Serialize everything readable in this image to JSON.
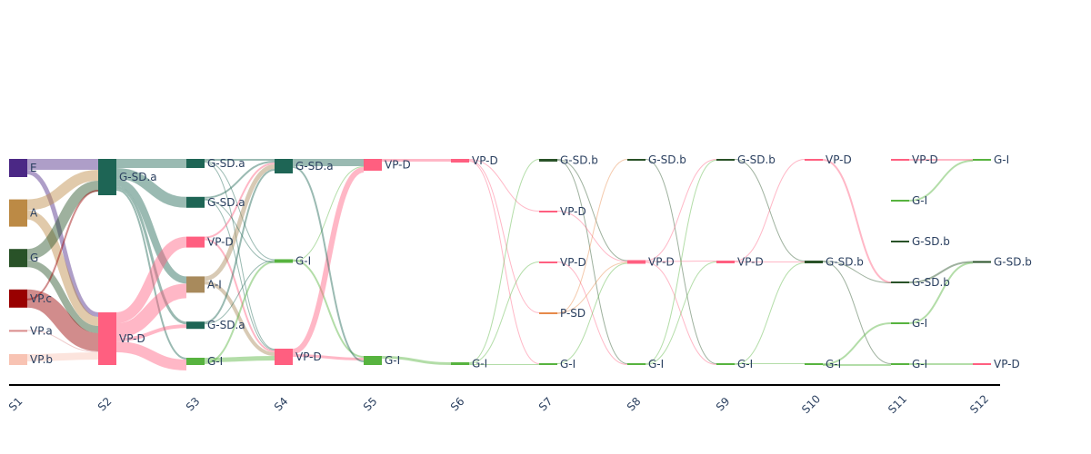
{
  "chart_data": {
    "type": "sankey",
    "title": "",
    "stages": [
      "S1",
      "S2",
      "S3",
      "S4",
      "S5",
      "S6",
      "S7",
      "S8",
      "S9",
      "S10",
      "S11",
      "S12"
    ],
    "colors": {
      "E": "#4b2885",
      "A": "#bc8a45",
      "G": "#295228",
      "VP.c": "#990000",
      "VP.a": "#d98a8a",
      "VP.b": "#f8c3b3",
      "G-SD.a": "#1e6555",
      "VP-D": "#ff5f80",
      "A-I": "#a88a5c",
      "G-I": "#57b33f",
      "G-SD.b": "#295228",
      "P-SD": "#e68a4a"
    },
    "nodes": [
      {
        "id": "s1_E",
        "label": "E",
        "stage": 0,
        "value": 20
      },
      {
        "id": "s1_A",
        "label": "A",
        "stage": 0,
        "value": 30
      },
      {
        "id": "s1_G",
        "label": "G",
        "stage": 0,
        "value": 20
      },
      {
        "id": "s1_VPc",
        "label": "VP.c",
        "stage": 0,
        "value": 20
      },
      {
        "id": "s1_VPa",
        "label": "VP.a",
        "stage": 0,
        "value": 1
      },
      {
        "id": "s1_VPb",
        "label": "VP.b",
        "stage": 0,
        "value": 12
      },
      {
        "id": "s2_GSDa",
        "label": "G-SD.a",
        "stage": 1,
        "value": 40
      },
      {
        "id": "s2_VPD",
        "label": "VP-D",
        "stage": 1,
        "value": 58
      },
      {
        "id": "s3_GSDa1",
        "label": "G-SD.a",
        "stage": 2,
        "value": 10
      },
      {
        "id": "s3_GSDa2",
        "label": "G-SD.a",
        "stage": 2,
        "value": 12
      },
      {
        "id": "s3_VPD",
        "label": "VP-D",
        "stage": 2,
        "value": 12
      },
      {
        "id": "s3_AI",
        "label": "A-I",
        "stage": 2,
        "value": 18
      },
      {
        "id": "s3_GSDa3",
        "label": "G-SD.a",
        "stage": 2,
        "value": 8
      },
      {
        "id": "s3_GI",
        "label": "G-I",
        "stage": 2,
        "value": 8
      },
      {
        "id": "s4_GSDa",
        "label": "G-SD.a",
        "stage": 3,
        "value": 16
      },
      {
        "id": "s4_GI",
        "label": "G-I",
        "stage": 3,
        "value": 4
      },
      {
        "id": "s4_VPD",
        "label": "VP-D",
        "stage": 3,
        "value": 18
      },
      {
        "id": "s5_VPD",
        "label": "VP-D",
        "stage": 4,
        "value": 13
      },
      {
        "id": "s5_GI",
        "label": "G-I",
        "stage": 4,
        "value": 10
      },
      {
        "id": "s6_VPD",
        "label": "VP-D",
        "stage": 5,
        "value": 4
      },
      {
        "id": "s6_GI",
        "label": "G-I",
        "stage": 5,
        "value": 3
      },
      {
        "id": "s7_GSDb",
        "label": "G-SD.b",
        "stage": 6,
        "value": 3
      },
      {
        "id": "s7_VPD1",
        "label": "VP-D",
        "stage": 6,
        "value": 2
      },
      {
        "id": "s7_VPD2",
        "label": "VP-D",
        "stage": 6,
        "value": 1
      },
      {
        "id": "s7_PSD",
        "label": "P-SD",
        "stage": 6,
        "value": 2
      },
      {
        "id": "s7_GI",
        "label": "G-I",
        "stage": 6,
        "value": 1
      },
      {
        "id": "s8_GSDb",
        "label": "G-SD.b",
        "stage": 7,
        "value": 2
      },
      {
        "id": "s8_VPD",
        "label": "VP-D",
        "stage": 7,
        "value": 4
      },
      {
        "id": "s8_GI",
        "label": "G-I",
        "stage": 7,
        "value": 2
      },
      {
        "id": "s9_GSDb",
        "label": "G-SD.b",
        "stage": 8,
        "value": 2
      },
      {
        "id": "s9_VPD",
        "label": "VP-D",
        "stage": 8,
        "value": 3
      },
      {
        "id": "s9_GI",
        "label": "G-I",
        "stage": 8,
        "value": 2
      },
      {
        "id": "s10_VPD",
        "label": "VP-D",
        "stage": 9,
        "value": 1
      },
      {
        "id": "s10_GSDb",
        "label": "G-SD.b",
        "stage": 9,
        "value": 3
      },
      {
        "id": "s10_GI",
        "label": "G-I",
        "stage": 9,
        "value": 1
      },
      {
        "id": "s11_VPD",
        "label": "VP-D",
        "stage": 10,
        "value": 1
      },
      {
        "id": "s11_GI1",
        "label": "G-I",
        "stage": 10,
        "value": 1
      },
      {
        "id": "s11_GSDb1",
        "label": "G-SD.b",
        "stage": 10,
        "value": 1
      },
      {
        "id": "s11_GSDb2",
        "label": "G-SD.b",
        "stage": 10,
        "value": 1
      },
      {
        "id": "s11_GI2",
        "label": "G-I",
        "stage": 10,
        "value": 1
      },
      {
        "id": "s11_GI3",
        "label": "G-I",
        "stage": 10,
        "value": 1
      },
      {
        "id": "s12_GI",
        "label": "G-I",
        "stage": 11,
        "value": 1
      },
      {
        "id": "s12_GSDb",
        "label": "G-SD.b",
        "stage": 11,
        "value": 1
      },
      {
        "id": "s12_VPD",
        "label": "VP-D",
        "stage": 11,
        "value": 1
      }
    ],
    "links": [
      {
        "source": "s1_E",
        "target": "s2_GSDa",
        "value": 12
      },
      {
        "source": "s1_E",
        "target": "s2_VPD",
        "value": 5
      },
      {
        "source": "s1_A",
        "target": "s2_GSDa",
        "value": 12
      },
      {
        "source": "s1_A",
        "target": "s2_VPD",
        "value": 10
      },
      {
        "source": "s1_G",
        "target": "s2_GSDa",
        "value": 12
      },
      {
        "source": "s1_G",
        "target": "s2_VPD",
        "value": 8
      },
      {
        "source": "s1_VPc",
        "target": "s2_VPD",
        "value": 20
      },
      {
        "source": "s1_VPc",
        "target": "s2_GSDa",
        "value": 2
      },
      {
        "source": "s1_VPa",
        "target": "s2_VPD",
        "value": 1
      },
      {
        "source": "s1_VPb",
        "target": "s2_VPD",
        "value": 8
      },
      {
        "source": "s2_GSDa",
        "target": "s3_GSDa1",
        "value": 10
      },
      {
        "source": "s2_GSDa",
        "target": "s3_GSDa2",
        "value": 12
      },
      {
        "source": "s2_GSDa",
        "target": "s3_AI",
        "value": 8
      },
      {
        "source": "s2_GSDa",
        "target": "s3_GSDa3",
        "value": 3
      },
      {
        "source": "s2_GSDa",
        "target": "s3_GI",
        "value": 2
      },
      {
        "source": "s2_VPD",
        "target": "s3_VPD",
        "value": 12
      },
      {
        "source": "s2_VPD",
        "target": "s3_AI",
        "value": 16
      },
      {
        "source": "s2_VPD",
        "target": "s3_GSDa3",
        "value": 4
      },
      {
        "source": "s2_VPD",
        "target": "s3_GI",
        "value": 12
      },
      {
        "source": "s3_GSDa1",
        "target": "s4_GSDa",
        "value": 2
      },
      {
        "source": "s3_GSDa1",
        "target": "s4_GI",
        "value": 1
      },
      {
        "source": "s3_GSDa1",
        "target": "s4_VPD",
        "value": 1
      },
      {
        "source": "s3_GSDa2",
        "target": "s4_GSDa",
        "value": 2
      },
      {
        "source": "s3_GSDa2",
        "target": "s4_VPD",
        "value": 1
      },
      {
        "source": "s3_VPD",
        "target": "s4_GSDa",
        "value": 2
      },
      {
        "source": "s3_VPD",
        "target": "s4_VPD",
        "value": 2
      },
      {
        "source": "s3_AI",
        "target": "s4_GSDa",
        "value": 5
      },
      {
        "source": "s3_AI",
        "target": "s4_VPD",
        "value": 4
      },
      {
        "source": "s3_GSDa3",
        "target": "s4_GSDa",
        "value": 2
      },
      {
        "source": "s3_GSDa3",
        "target": "s4_GI",
        "value": 1
      },
      {
        "source": "s3_GI",
        "target": "s4_VPD",
        "value": 5
      },
      {
        "source": "s3_GI",
        "target": "s4_GI",
        "value": 2
      },
      {
        "source": "s3_GSDa2",
        "target": "s4_GI",
        "value": 1
      },
      {
        "source": "s4_GSDa",
        "target": "s5_VPD",
        "value": 8
      },
      {
        "source": "s4_GI",
        "target": "s5_GI",
        "value": 2
      },
      {
        "source": "s4_GI",
        "target": "s5_VPD",
        "value": 1
      },
      {
        "source": "s4_VPD",
        "target": "s5_VPD",
        "value": 6
      },
      {
        "source": "s4_VPD",
        "target": "s5_GI",
        "value": 3
      },
      {
        "source": "s4_GSDa",
        "target": "s5_GI",
        "value": 2
      },
      {
        "source": "s5_VPD",
        "target": "s6_VPD",
        "value": 3
      },
      {
        "source": "s5_GI",
        "target": "s6_GI",
        "value": 3
      },
      {
        "source": "s6_VPD",
        "target": "s7_VPD1",
        "value": 1
      },
      {
        "source": "s6_VPD",
        "target": "s7_PSD",
        "value": 1
      },
      {
        "source": "s6_VPD",
        "target": "s7_GI",
        "value": 1
      },
      {
        "source": "s6_GI",
        "target": "s7_GSDb",
        "value": 1
      },
      {
        "source": "s6_GI",
        "target": "s7_VPD2",
        "value": 1
      },
      {
        "source": "s6_GI",
        "target": "s7_GI",
        "value": 1
      },
      {
        "source": "s7_GSDb",
        "target": "s8_VPD",
        "value": 1
      },
      {
        "source": "s7_GSDb",
        "target": "s8_GI",
        "value": 1
      },
      {
        "source": "s7_VPD1",
        "target": "s8_VPD",
        "value": 1
      },
      {
        "source": "s7_VPD2",
        "target": "s8_GI",
        "value": 1
      },
      {
        "source": "s7_PSD",
        "target": "s8_VPD",
        "value": 1
      },
      {
        "source": "s7_PSD",
        "target": "s8_GSDb",
        "value": 1
      },
      {
        "source": "s7_GI",
        "target": "s8_VPD",
        "value": 1
      },
      {
        "source": "s8_GSDb",
        "target": "s9_GI",
        "value": 1
      },
      {
        "source": "s8_VPD",
        "target": "s9_GSDb",
        "value": 1
      },
      {
        "source": "s8_VPD",
        "target": "s9_VPD",
        "value": 1
      },
      {
        "source": "s8_VPD",
        "target": "s9_GI",
        "value": 1
      },
      {
        "source": "s8_GI",
        "target": "s9_GSDb",
        "value": 1
      },
      {
        "source": "s8_GI",
        "target": "s9_VPD",
        "value": 1
      },
      {
        "source": "s9_GSDb",
        "target": "s10_GSDb",
        "value": 1
      },
      {
        "source": "s9_VPD",
        "target": "s10_VPD",
        "value": 1
      },
      {
        "source": "s9_VPD",
        "target": "s10_GSDb",
        "value": 1
      },
      {
        "source": "s9_GI",
        "target": "s10_GI",
        "value": 1
      },
      {
        "source": "s9_GI",
        "target": "s10_GSDb",
        "value": 1
      },
      {
        "source": "s10_VPD",
        "target": "s11_GSDb2",
        "value": 1
      },
      {
        "source": "s10_GSDb",
        "target": "s11_GSDb2",
        "value": 1
      },
      {
        "source": "s10_GSDb",
        "target": "s11_GI3",
        "value": 1
      },
      {
        "source": "s10_GI",
        "target": "s11_GI2",
        "value": 1
      },
      {
        "source": "s10_GI",
        "target": "s11_GI3",
        "value": 1
      },
      {
        "source": "s11_VPD",
        "target": "s12_GI",
        "value": 1
      },
      {
        "source": "s11_GI1",
        "target": "s12_GI",
        "value": 1
      },
      {
        "source": "s11_GSDb2",
        "target": "s12_GSDb",
        "value": 1
      },
      {
        "source": "s11_GI2",
        "target": "s12_GSDb",
        "value": 1
      },
      {
        "source": "s11_GI3",
        "target": "s12_VPD",
        "value": 1
      }
    ]
  }
}
